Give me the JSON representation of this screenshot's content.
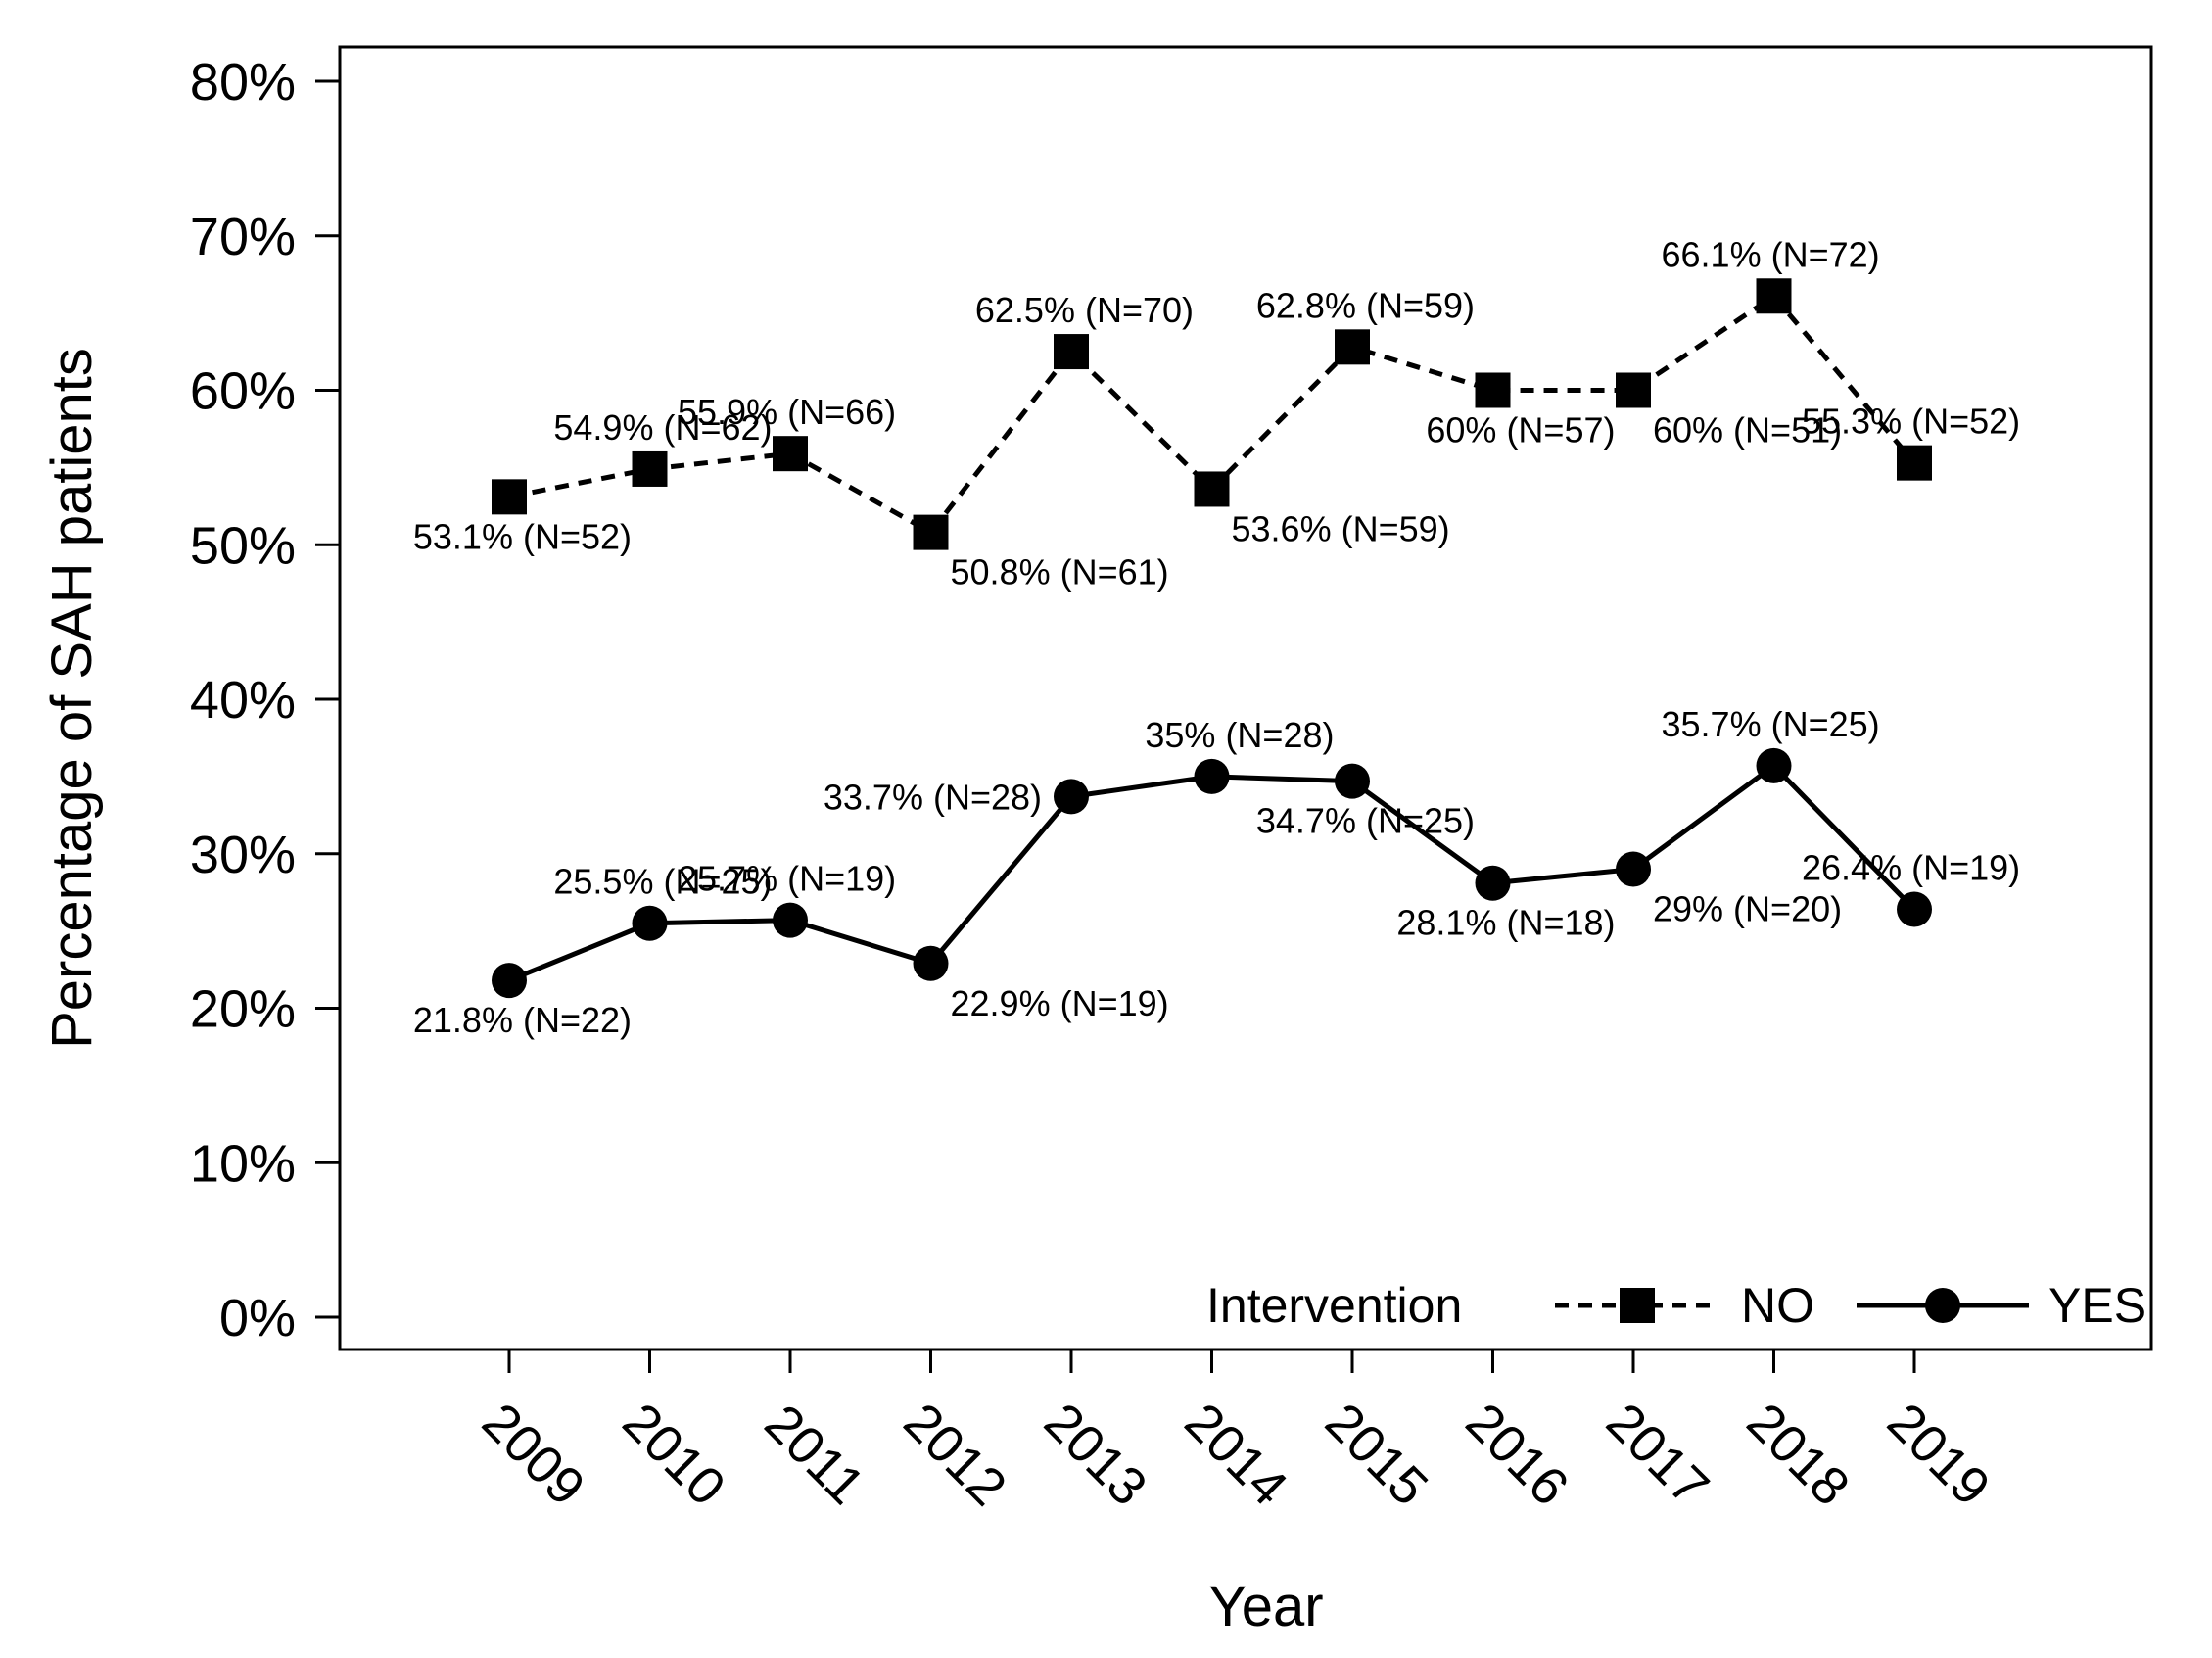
{
  "chart_data": {
    "type": "line",
    "xlabel": "Year",
    "ylabel": "Percentage of SAH patients",
    "ylim": [
      0,
      80
    ],
    "yticks": [
      0,
      10,
      20,
      30,
      40,
      50,
      60,
      70,
      80
    ],
    "ytick_labels": [
      "0%",
      "10%",
      "20%",
      "30%",
      "40%",
      "50%",
      "60%",
      "70%",
      "80%"
    ],
    "categories": [
      "2009",
      "2010",
      "2011",
      "2012",
      "2013",
      "2014",
      "2015",
      "2016",
      "2017",
      "2018",
      "2019"
    ],
    "legend": {
      "title": "Intervention",
      "position": "bottom-right"
    },
    "series": [
      {
        "name": "NO",
        "line_style": "dashed",
        "marker": "square",
        "values": [
          53.1,
          54.9,
          55.9,
          50.8,
          62.5,
          53.6,
          62.8,
          60,
          60,
          66.1,
          55.3
        ],
        "labels": [
          "53.1% (N=52)",
          "54.9% (N=62)",
          "55.9% (N=66)",
          "50.8% (N=61)",
          "62.5% (N=70)",
          "53.6% (N=59)",
          "62.8% (N=59)",
          "60% (N=57)",
          "60% (N=51)",
          "66.1% (N=72)",
          "55.3% (N=52)"
        ],
        "label_positions": [
          "below-left",
          "above-left",
          "above-right",
          "below-right",
          "above-left",
          "below-right",
          "above-left",
          "below-left",
          "below-right",
          "above-right",
          "above-right"
        ]
      },
      {
        "name": "YES",
        "line_style": "solid",
        "marker": "circle",
        "values": [
          21.8,
          25.5,
          25.7,
          22.9,
          33.7,
          35,
          34.7,
          28.1,
          29,
          35.7,
          26.4
        ],
        "labels": [
          "21.8% (N=22)",
          "25.5% (N=25)",
          "25.7% (N=19)",
          "22.9% (N=19)",
          "33.7% (N=28)",
          "35% (N=28)",
          "34.7% (N=25)",
          "28.1% (N=18)",
          "29% (N=20)",
          "35.7% (N=25)",
          "26.4% (N=19)"
        ],
        "label_positions": [
          "below-left",
          "above-left",
          "above-right",
          "below-right",
          "left",
          "above-left",
          "below-left",
          "below-left",
          "below-right",
          "above-right",
          "above-right"
        ]
      }
    ]
  }
}
